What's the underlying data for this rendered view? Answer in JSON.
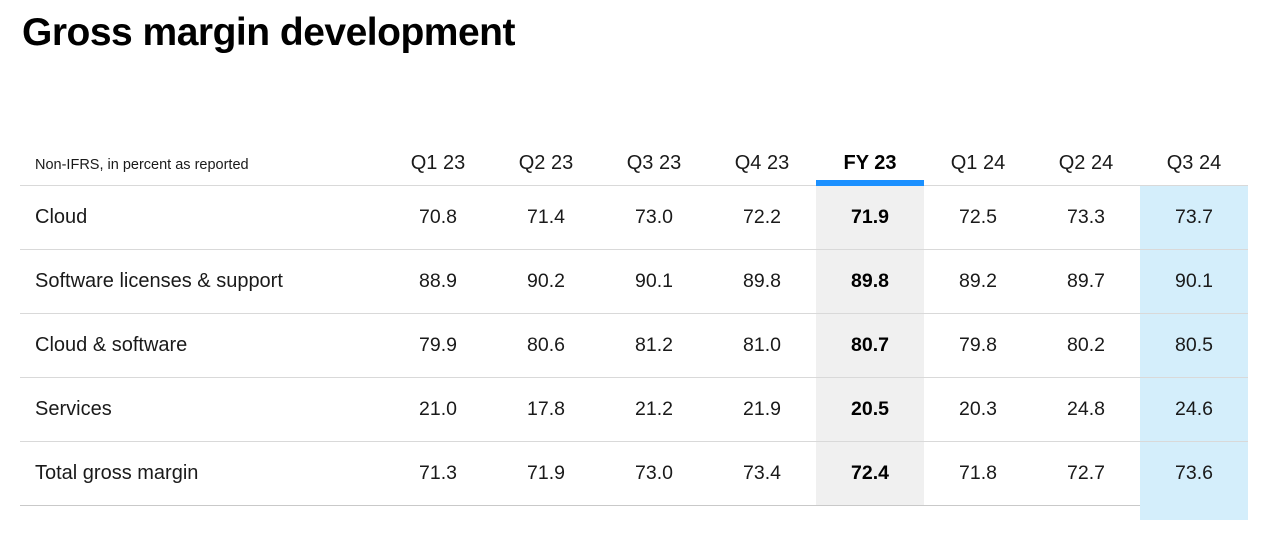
{
  "page": {
    "title": "Gross margin development"
  },
  "chart_data": {
    "type": "table",
    "title": "Gross margin development",
    "note": "Non-IFRS, in percent as reported",
    "columns": [
      "Q1 23",
      "Q2 23",
      "Q3 23",
      "Q4 23",
      "FY 23",
      "Q1 24",
      "Q2 24",
      "Q3 24"
    ],
    "emphasized_column": "FY 23",
    "highlighted_column": "Q3 24",
    "rows": [
      {
        "label": "Cloud",
        "values": [
          "70.8",
          "71.4",
          "73.0",
          "72.2",
          "71.9",
          "72.5",
          "73.3",
          "73.7"
        ]
      },
      {
        "label": "Software licenses & support",
        "values": [
          "88.9",
          "90.2",
          "90.1",
          "89.8",
          "89.8",
          "89.2",
          "89.7",
          "90.1"
        ]
      },
      {
        "label": "Cloud & software",
        "values": [
          "79.9",
          "80.6",
          "81.2",
          "81.0",
          "80.7",
          "79.8",
          "80.2",
          "80.5"
        ]
      },
      {
        "label": "Services",
        "values": [
          "21.0",
          "17.8",
          "21.2",
          "21.9",
          "20.5",
          "20.3",
          "24.8",
          "24.6"
        ]
      },
      {
        "label": "Total gross margin",
        "values": [
          "71.3",
          "71.9",
          "73.0",
          "73.4",
          "72.4",
          "71.8",
          "72.7",
          "73.6"
        ]
      }
    ]
  },
  "colors": {
    "accent_blue": "#1B90FF",
    "fy_column_bg": "#F0F0F0",
    "latest_column_bg": "#D4EEFB",
    "row_divider": "#D9D9D9",
    "table_bottom_border": "#C9C9C9",
    "title_text": "#000000",
    "body_text": "#1A1A1A"
  }
}
